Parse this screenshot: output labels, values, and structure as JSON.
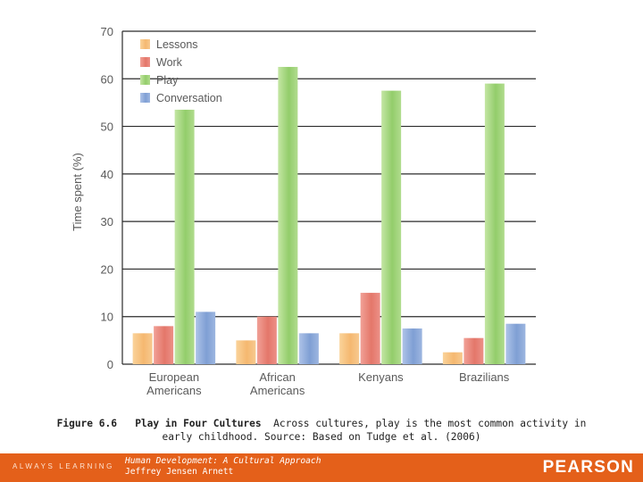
{
  "chart_data": {
    "type": "bar",
    "categories": [
      "European\nAmericans",
      "African\nAmericans",
      "Kenyans",
      "Brazilians"
    ],
    "series": [
      {
        "name": "Lessons",
        "color": "#f5b870",
        "values": [
          6.5,
          5,
          6.5,
          2.5
        ]
      },
      {
        "name": "Work",
        "color": "#e4776a",
        "values": [
          8,
          10,
          15,
          5.5
        ]
      },
      {
        "name": "Play",
        "color": "#93cd6b",
        "values": [
          53.5,
          62.5,
          57.5,
          59
        ]
      },
      {
        "name": "Conversation",
        "color": "#7f9fd4",
        "values": [
          11,
          6.5,
          7.5,
          8.5
        ]
      }
    ],
    "ylabel": "Time spent (%)",
    "ylim": [
      0,
      70
    ],
    "yticks": [
      0,
      10,
      20,
      30,
      40,
      50,
      60,
      70
    ],
    "grid": true,
    "legend": "top-left"
  },
  "caption": {
    "figure_id": "Figure 6.6",
    "title": "Play in Four Cultures",
    "text": "Across cultures, play is the most common activity in early childhood. Source: Based on Tudge et al. (2006)"
  },
  "footer": {
    "tagline": "ALWAYS LEARNING",
    "book_title": "Human Development: A Cultural Approach",
    "author": "Jeffrey Jensen Arnett",
    "brand": "PEARSON",
    "color": "#e4601a"
  }
}
